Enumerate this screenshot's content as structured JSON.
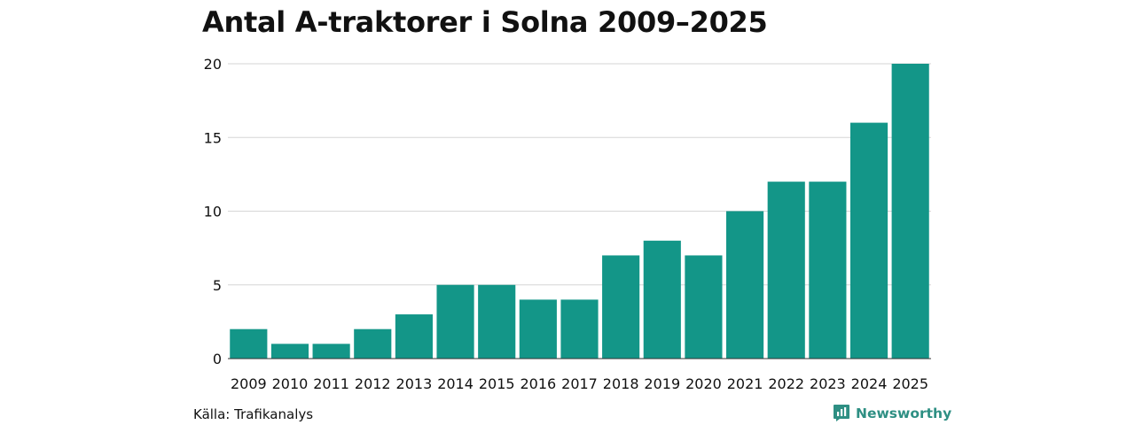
{
  "title": "Antal A-traktorer i Solna 2009–2025",
  "source": "Källa: Trafikanalys",
  "brand": {
    "name": "Newsworthy",
    "icon": "newsworthy-logo-icon",
    "color": "#2e8f83"
  },
  "colors": {
    "bar": "#139688",
    "grid": "#d6d6d6",
    "axis": "#333333"
  },
  "chart_data": {
    "type": "bar",
    "title": "Antal A-traktorer i Solna 2009–2025",
    "xlabel": "",
    "ylabel": "",
    "categories": [
      "2009",
      "2010",
      "2011",
      "2012",
      "2013",
      "2014",
      "2015",
      "2016",
      "2017",
      "2018",
      "2019",
      "2020",
      "2021",
      "2022",
      "2023",
      "2024",
      "2025"
    ],
    "values": [
      2,
      1,
      1,
      2,
      3,
      5,
      5,
      4,
      4,
      7,
      8,
      7,
      10,
      12,
      12,
      16,
      20
    ],
    "ylim": [
      0,
      20
    ],
    "yticks": [
      0,
      5,
      10,
      15,
      20
    ],
    "grid": true,
    "legend": "none"
  }
}
